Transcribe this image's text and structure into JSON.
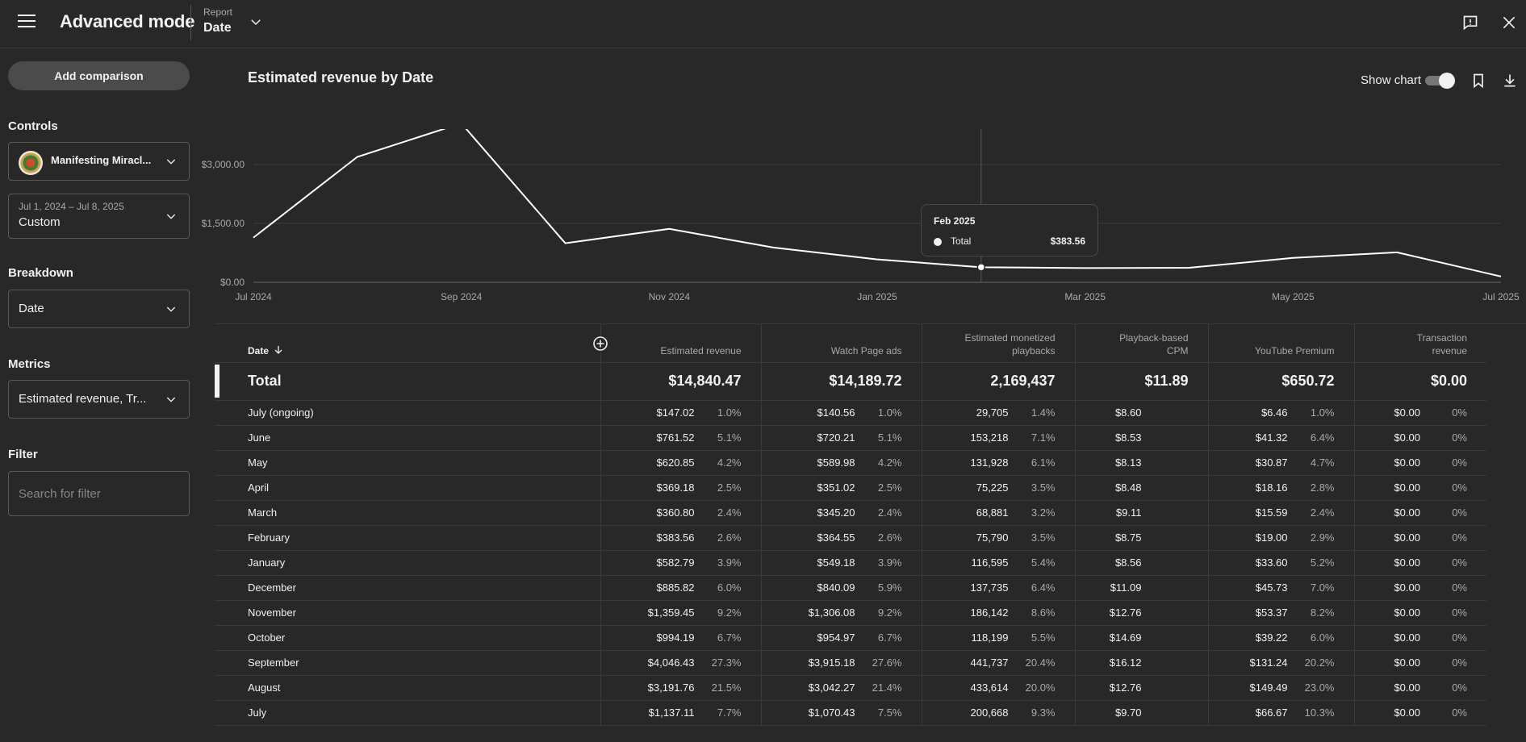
{
  "header": {
    "title": "Advanced mode",
    "report_label": "Report",
    "report_value": "Date"
  },
  "sidebar": {
    "add_comparison": "Add comparison",
    "controls_heading": "Controls",
    "channel_name": "Manifesting Miracl...",
    "date_range": "Jul 1, 2024 – Jul 8, 2025",
    "date_preset": "Custom",
    "breakdown_heading": "Breakdown",
    "breakdown_value": "Date",
    "metrics_heading": "Metrics",
    "metrics_value": "Estimated revenue, Tr...",
    "filter_heading": "Filter",
    "filter_placeholder": "Search for filter"
  },
  "chart": {
    "title": "Estimated revenue by Date",
    "show_chart_label": "Show chart",
    "show_chart_on": true,
    "tooltip": {
      "date": "Feb 2025",
      "series": "Total",
      "value": "$383.56"
    }
  },
  "chart_data": {
    "type": "line",
    "title": "Estimated revenue by Date",
    "x": [
      "Jul 2024",
      "Aug 2024",
      "Sep 2024",
      "Oct 2024",
      "Nov 2024",
      "Dec 2024",
      "Jan 2025",
      "Feb 2025",
      "Mar 2025",
      "Apr 2025",
      "May 2025",
      "Jun 2025",
      "Jul 2025"
    ],
    "series": [
      {
        "name": "Total",
        "values": [
          1137.11,
          3191.76,
          4046.43,
          994.19,
          1359.45,
          885.82,
          582.79,
          383.56,
          360.8,
          369.18,
          620.85,
          761.52,
          147.02
        ]
      }
    ],
    "x_tick_labels": [
      "Jul 2024",
      "Sep 2024",
      "Nov 2024",
      "Jan 2025",
      "Mar 2025",
      "May 2025",
      "Jul 2025"
    ],
    "y_ticks": [
      0,
      1500,
      3000
    ],
    "y_tick_labels": [
      "$0.00",
      "$1,500.00",
      "$3,000.00"
    ],
    "ylim": [
      0,
      3900
    ],
    "grid": true,
    "highlight_index": 7
  },
  "table": {
    "date_header": "Date",
    "columns": [
      {
        "line1": "",
        "line2": "Estimated revenue"
      },
      {
        "line1": "",
        "line2": "Watch Page ads"
      },
      {
        "line1": "Estimated monetized",
        "line2": "playbacks"
      },
      {
        "line1": "Playback-based",
        "line2": "CPM"
      },
      {
        "line1": "",
        "line2": "YouTube Premium"
      },
      {
        "line1": "Transaction",
        "line2": "revenue"
      }
    ],
    "total": {
      "label": "Total",
      "values": [
        "$14,840.47",
        "$14,189.72",
        "2,169,437",
        "$11.89",
        "$650.72",
        "$0.00"
      ]
    },
    "rows": [
      {
        "date": "July (ongoing)",
        "cells": [
          [
            "$147.02",
            "1.0%"
          ],
          [
            "$140.56",
            "1.0%"
          ],
          [
            "29,705",
            "1.4%"
          ],
          [
            "$8.60",
            ""
          ],
          [
            "$6.46",
            "1.0%"
          ],
          [
            "$0.00",
            "0%"
          ]
        ]
      },
      {
        "date": "June",
        "cells": [
          [
            "$761.52",
            "5.1%"
          ],
          [
            "$720.21",
            "5.1%"
          ],
          [
            "153,218",
            "7.1%"
          ],
          [
            "$8.53",
            ""
          ],
          [
            "$41.32",
            "6.4%"
          ],
          [
            "$0.00",
            "0%"
          ]
        ]
      },
      {
        "date": "May",
        "cells": [
          [
            "$620.85",
            "4.2%"
          ],
          [
            "$589.98",
            "4.2%"
          ],
          [
            "131,928",
            "6.1%"
          ],
          [
            "$8.13",
            ""
          ],
          [
            "$30.87",
            "4.7%"
          ],
          [
            "$0.00",
            "0%"
          ]
        ]
      },
      {
        "date": "April",
        "cells": [
          [
            "$369.18",
            "2.5%"
          ],
          [
            "$351.02",
            "2.5%"
          ],
          [
            "75,225",
            "3.5%"
          ],
          [
            "$8.48",
            ""
          ],
          [
            "$18.16",
            "2.8%"
          ],
          [
            "$0.00",
            "0%"
          ]
        ]
      },
      {
        "date": "March",
        "cells": [
          [
            "$360.80",
            "2.4%"
          ],
          [
            "$345.20",
            "2.4%"
          ],
          [
            "68,881",
            "3.2%"
          ],
          [
            "$9.11",
            ""
          ],
          [
            "$15.59",
            "2.4%"
          ],
          [
            "$0.00",
            "0%"
          ]
        ]
      },
      {
        "date": "February",
        "cells": [
          [
            "$383.56",
            "2.6%"
          ],
          [
            "$364.55",
            "2.6%"
          ],
          [
            "75,790",
            "3.5%"
          ],
          [
            "$8.75",
            ""
          ],
          [
            "$19.00",
            "2.9%"
          ],
          [
            "$0.00",
            "0%"
          ]
        ]
      },
      {
        "date": "January",
        "cells": [
          [
            "$582.79",
            "3.9%"
          ],
          [
            "$549.18",
            "3.9%"
          ],
          [
            "116,595",
            "5.4%"
          ],
          [
            "$8.56",
            ""
          ],
          [
            "$33.60",
            "5.2%"
          ],
          [
            "$0.00",
            "0%"
          ]
        ]
      },
      {
        "date": "December",
        "cells": [
          [
            "$885.82",
            "6.0%"
          ],
          [
            "$840.09",
            "5.9%"
          ],
          [
            "137,735",
            "6.4%"
          ],
          [
            "$11.09",
            ""
          ],
          [
            "$45.73",
            "7.0%"
          ],
          [
            "$0.00",
            "0%"
          ]
        ]
      },
      {
        "date": "November",
        "cells": [
          [
            "$1,359.45",
            "9.2%"
          ],
          [
            "$1,306.08",
            "9.2%"
          ],
          [
            "186,142",
            "8.6%"
          ],
          [
            "$12.76",
            ""
          ],
          [
            "$53.37",
            "8.2%"
          ],
          [
            "$0.00",
            "0%"
          ]
        ]
      },
      {
        "date": "October",
        "cells": [
          [
            "$994.19",
            "6.7%"
          ],
          [
            "$954.97",
            "6.7%"
          ],
          [
            "118,199",
            "5.5%"
          ],
          [
            "$14.69",
            ""
          ],
          [
            "$39.22",
            "6.0%"
          ],
          [
            "$0.00",
            "0%"
          ]
        ]
      },
      {
        "date": "September",
        "cells": [
          [
            "$4,046.43",
            "27.3%"
          ],
          [
            "$3,915.18",
            "27.6%"
          ],
          [
            "441,737",
            "20.4%"
          ],
          [
            "$16.12",
            ""
          ],
          [
            "$131.24",
            "20.2%"
          ],
          [
            "$0.00",
            "0%"
          ]
        ]
      },
      {
        "date": "August",
        "cells": [
          [
            "$3,191.76",
            "21.5%"
          ],
          [
            "$3,042.27",
            "21.4%"
          ],
          [
            "433,614",
            "20.0%"
          ],
          [
            "$12.76",
            ""
          ],
          [
            "$149.49",
            "23.0%"
          ],
          [
            "$0.00",
            "0%"
          ]
        ]
      },
      {
        "date": "July",
        "cells": [
          [
            "$1,137.11",
            "7.7%"
          ],
          [
            "$1,070.43",
            "7.5%"
          ],
          [
            "200,668",
            "9.3%"
          ],
          [
            "$9.70",
            ""
          ],
          [
            "$66.67",
            "10.3%"
          ],
          [
            "$0.00",
            "0%"
          ]
        ]
      }
    ]
  },
  "colors": {
    "background": "#282828",
    "text": "#f1f1f1",
    "muted": "#aaaaaa",
    "grid": "#3e3e3e",
    "line": "#ffffff"
  }
}
